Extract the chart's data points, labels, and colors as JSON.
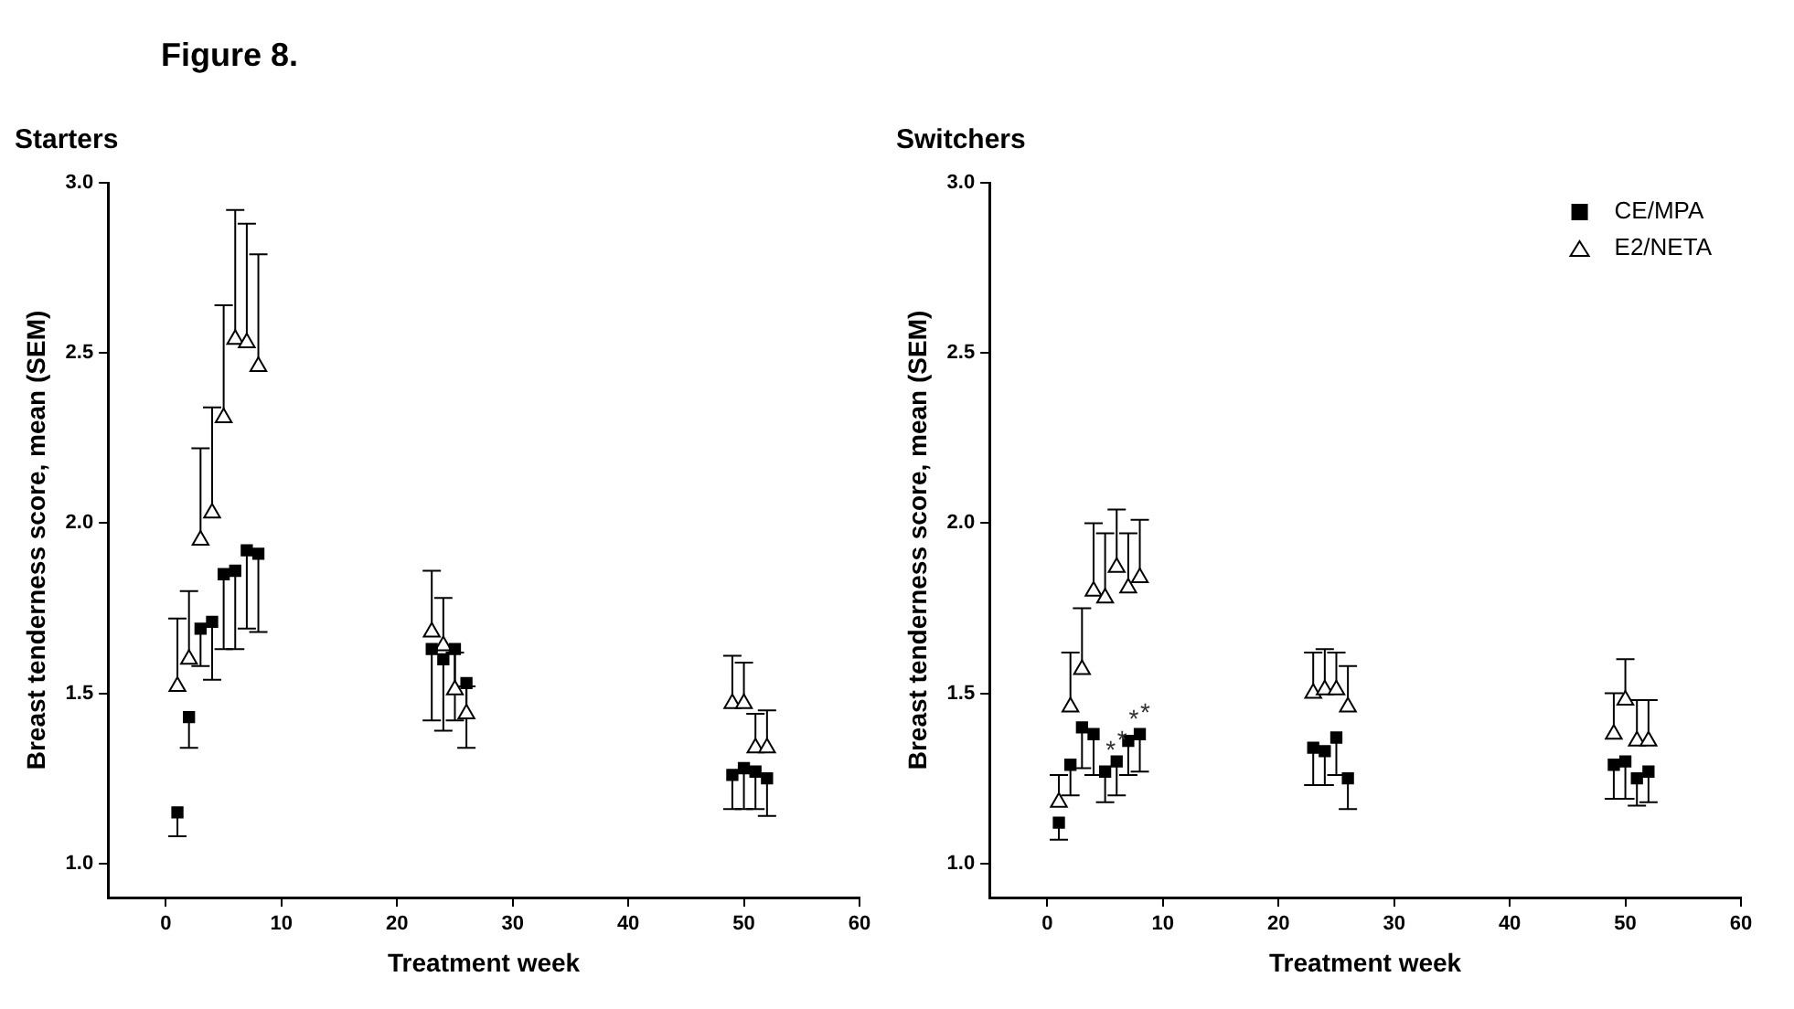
{
  "chart_data": [
    {
      "type": "scatter",
      "title": "Starters",
      "xlabel": "Treatment week",
      "ylabel": "Breast tenderness score, mean (SEM)",
      "annotations": [
        "Figure 8."
      ],
      "xlim": [
        -5,
        60
      ],
      "xticks": [
        0,
        10,
        20,
        30,
        40,
        50,
        60
      ],
      "ylim": [
        0.9,
        3.0
      ],
      "yticks": [
        {
          "value": 1,
          "label": "1.0"
        },
        {
          "value": 1.5,
          "label": "1.5"
        },
        {
          "value": 2,
          "label": "2.0"
        },
        {
          "value": 2.5,
          "label": "2.5"
        },
        {
          "value": 3,
          "label": "3.0"
        }
      ],
      "grid": false,
      "legend": false,
      "series": [
        {
          "color": "#000000",
          "marker": "square",
          "x": [
            1,
            2,
            3,
            4,
            5,
            6,
            7,
            8,
            23,
            24,
            25,
            26,
            49,
            50,
            51,
            52
          ],
          "values": [
            1.15,
            1.43,
            1.69,
            1.71,
            1.85,
            1.86,
            1.92,
            1.91,
            1.63,
            1.6,
            1.63,
            1.53,
            1.26,
            1.28,
            1.27,
            1.25
          ],
          "errors": [
            [
              1.08,
              1.15
            ],
            [
              1.34,
              1.43
            ],
            [
              1.58,
              1.69
            ],
            [
              1.54,
              1.71
            ],
            [
              1.63,
              1.85
            ],
            [
              1.63,
              1.86
            ],
            [
              1.69,
              1.92
            ],
            [
              1.68,
              1.91
            ],
            [
              1.42,
              1.63
            ],
            [
              1.39,
              1.6
            ],
            [
              1.42,
              1.63
            ],
            [
              1.34,
              1.53
            ],
            [
              1.16,
              1.26
            ],
            [
              1.16,
              1.28
            ],
            [
              1.16,
              1.27
            ],
            [
              1.14,
              1.25
            ]
          ]
        },
        {
          "color": "#000000",
          "marker": "triangle",
          "x": [
            1,
            2,
            3,
            4,
            5,
            6,
            7,
            8,
            23,
            24,
            25,
            26,
            49,
            50,
            51,
            52
          ],
          "values": [
            1.52,
            1.6,
            1.95,
            2.03,
            2.31,
            2.54,
            2.53,
            2.46,
            1.68,
            1.64,
            1.51,
            1.44,
            1.47,
            1.47,
            1.34,
            1.34
          ],
          "errors": [
            [
              1.52,
              1.72
            ],
            [
              1.6,
              1.8
            ],
            [
              1.95,
              2.22
            ],
            [
              2.03,
              2.34
            ],
            [
              2.31,
              2.64
            ],
            [
              2.54,
              2.92
            ],
            [
              2.53,
              2.88
            ],
            [
              2.46,
              2.79
            ],
            [
              1.68,
              1.86
            ],
            [
              1.64,
              1.78
            ],
            [
              1.51,
              1.62
            ],
            [
              1.44,
              1.52
            ],
            [
              1.47,
              1.61
            ],
            [
              1.47,
              1.59
            ],
            [
              1.34,
              1.44
            ],
            [
              1.34,
              1.45
            ]
          ]
        }
      ]
    },
    {
      "type": "scatter",
      "title": "Switchers",
      "xlabel": "Treatment week",
      "ylabel": "Breast tenderness score, mean (SEM)",
      "annotations": [
        {
          "text": "*",
          "x": 5,
          "y": 1.27
        },
        {
          "text": "*",
          "x": 6,
          "y": 1.3
        },
        {
          "text": "*",
          "x": 7,
          "y": 1.36
        },
        {
          "text": "*",
          "x": 8,
          "y": 1.38
        }
      ],
      "xlim": [
        -5,
        60
      ],
      "xticks": [
        0,
        10,
        20,
        30,
        40,
        50,
        60
      ],
      "ylim": [
        0.9,
        3.0
      ],
      "yticks": [
        {
          "value": 1,
          "label": "1.0"
        },
        {
          "value": 1.5,
          "label": "1.5"
        },
        {
          "value": 2,
          "label": "2.0"
        },
        {
          "value": 2.5,
          "label": "2.5"
        },
        {
          "value": 3,
          "label": "3.0"
        }
      ],
      "grid": false,
      "legend": "top right",
      "series": [
        {
          "name": "CE/MPA",
          "color": "#000000",
          "marker": "square",
          "x": [
            1,
            2,
            3,
            4,
            5,
            6,
            7,
            8,
            23,
            24,
            25,
            26,
            49,
            50,
            51,
            52
          ],
          "values": [
            1.12,
            1.29,
            1.4,
            1.38,
            1.27,
            1.3,
            1.36,
            1.38,
            1.34,
            1.33,
            1.37,
            1.25,
            1.29,
            1.3,
            1.25,
            1.27
          ],
          "errors": [
            [
              1.07,
              1.12
            ],
            [
              1.2,
              1.29
            ],
            [
              1.28,
              1.4
            ],
            [
              1.26,
              1.38
            ],
            [
              1.18,
              1.27
            ],
            [
              1.2,
              1.3
            ],
            [
              1.26,
              1.36
            ],
            [
              1.27,
              1.38
            ],
            [
              1.23,
              1.34
            ],
            [
              1.23,
              1.33
            ],
            [
              1.26,
              1.37
            ],
            [
              1.16,
              1.25
            ],
            [
              1.19,
              1.29
            ],
            [
              1.19,
              1.3
            ],
            [
              1.17,
              1.25
            ],
            [
              1.18,
              1.27
            ]
          ]
        },
        {
          "name": "E2/NETA",
          "color": "#000000",
          "marker": "triangle",
          "x": [
            1,
            2,
            3,
            4,
            5,
            6,
            7,
            8,
            23,
            24,
            25,
            26,
            49,
            50,
            51,
            52
          ],
          "values": [
            1.18,
            1.46,
            1.57,
            1.8,
            1.78,
            1.87,
            1.81,
            1.84,
            1.5,
            1.51,
            1.51,
            1.46,
            1.38,
            1.48,
            1.36,
            1.36
          ],
          "errors": [
            [
              1.18,
              1.26
            ],
            [
              1.46,
              1.62
            ],
            [
              1.57,
              1.75
            ],
            [
              1.8,
              2.0
            ],
            [
              1.78,
              1.97
            ],
            [
              1.87,
              2.04
            ],
            [
              1.81,
              1.97
            ],
            [
              1.84,
              2.01
            ],
            [
              1.5,
              1.62
            ],
            [
              1.51,
              1.63
            ],
            [
              1.51,
              1.62
            ],
            [
              1.46,
              1.58
            ],
            [
              1.38,
              1.5
            ],
            [
              1.48,
              1.6
            ],
            [
              1.36,
              1.48
            ],
            [
              1.36,
              1.48
            ]
          ]
        }
      ]
    }
  ]
}
